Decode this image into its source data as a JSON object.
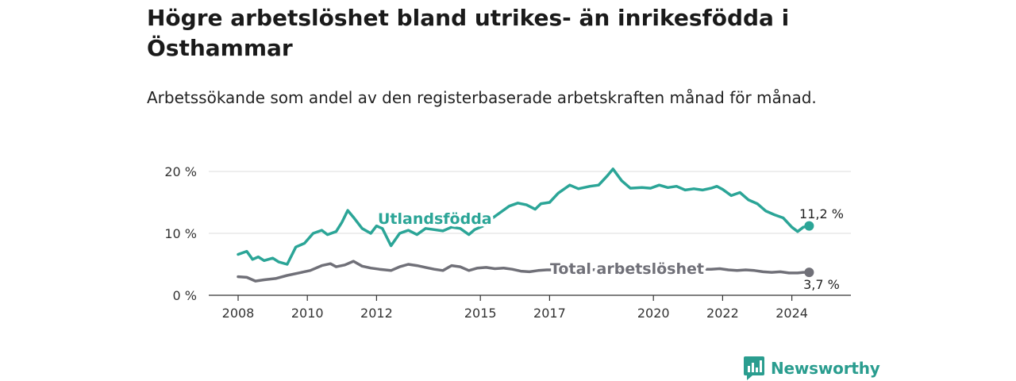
{
  "title": "Högre arbetslöshet bland utrikes- än inrikesfödda i Östhammar",
  "subtitle": "Arbetssökande som andel av den registerbaserade arbetskraften månad för månad.",
  "brand": {
    "name": "Newsworthy",
    "icon": "newsworthy-logo-icon"
  },
  "colors": {
    "foreign_born": "#2ba597",
    "total": "#707078",
    "grid": "#dddddd",
    "brand": "#2a9d8f"
  },
  "chart_data": {
    "type": "line",
    "title": "Högre arbetslöshet bland utrikes- än inrikesfödda i Östhammar",
    "subtitle": "Arbetssökande som andel av den registerbaserade arbetskraften månad för månad.",
    "xlabel": "",
    "ylabel": "",
    "x_ticks": [
      "2008",
      "2010",
      "2012",
      "2015",
      "2017",
      "2020",
      "2022",
      "2024"
    ],
    "y_ticks": [
      "0 %",
      "10 %",
      "20 %"
    ],
    "ylim": [
      0,
      20
    ],
    "grid": "horizontal",
    "legend": "inline labels",
    "series": [
      {
        "name": "Utlandsfödda",
        "last_label": "11,2 %",
        "color": "#2ba597",
        "points": [
          [
            "2008-01",
            6.6
          ],
          [
            "2008-04",
            7.1
          ],
          [
            "2008-06",
            5.8
          ],
          [
            "2008-08",
            6.2
          ],
          [
            "2008-10",
            5.6
          ],
          [
            "2009-01",
            6.0
          ],
          [
            "2009-03",
            5.4
          ],
          [
            "2009-06",
            5.0
          ],
          [
            "2009-09",
            7.8
          ],
          [
            "2009-12",
            8.4
          ],
          [
            "2010-03",
            10.0
          ],
          [
            "2010-06",
            10.5
          ],
          [
            "2010-08",
            9.8
          ],
          [
            "2010-11",
            10.3
          ],
          [
            "2011-01",
            11.8
          ],
          [
            "2011-03",
            13.7
          ],
          [
            "2011-05",
            12.6
          ],
          [
            "2011-08",
            10.8
          ],
          [
            "2011-11",
            10.0
          ],
          [
            "2012-01",
            11.2
          ],
          [
            "2012-03",
            10.8
          ],
          [
            "2012-06",
            8.0
          ],
          [
            "2012-09",
            10.0
          ],
          [
            "2012-12",
            10.5
          ],
          [
            "2013-03",
            9.8
          ],
          [
            "2013-06",
            10.8
          ],
          [
            "2013-09",
            10.6
          ],
          [
            "2013-12",
            10.4
          ],
          [
            "2014-03",
            11.0
          ],
          [
            "2014-06",
            10.8
          ],
          [
            "2014-09",
            9.8
          ],
          [
            "2014-11",
            10.6
          ],
          [
            "2015-02",
            11.2
          ],
          [
            "2015-05",
            12.4
          ],
          [
            "2015-08",
            13.4
          ],
          [
            "2015-11",
            14.4
          ],
          [
            "2016-02",
            14.9
          ],
          [
            "2016-05",
            14.6
          ],
          [
            "2016-08",
            13.9
          ],
          [
            "2016-10",
            14.8
          ],
          [
            "2017-01",
            15.0
          ],
          [
            "2017-04",
            16.5
          ],
          [
            "2017-08",
            17.8
          ],
          [
            "2017-11",
            17.2
          ],
          [
            "2018-03",
            17.6
          ],
          [
            "2018-06",
            17.8
          ],
          [
            "2018-09",
            19.3
          ],
          [
            "2018-11",
            20.4
          ],
          [
            "2019-02",
            18.5
          ],
          [
            "2019-05",
            17.3
          ],
          [
            "2019-09",
            17.4
          ],
          [
            "2019-12",
            17.3
          ],
          [
            "2020-03",
            17.8
          ],
          [
            "2020-06",
            17.4
          ],
          [
            "2020-09",
            17.6
          ],
          [
            "2020-12",
            17.0
          ],
          [
            "2021-03",
            17.2
          ],
          [
            "2021-06",
            17.0
          ],
          [
            "2021-09",
            17.3
          ],
          [
            "2021-11",
            17.6
          ],
          [
            "2022-01",
            17.1
          ],
          [
            "2022-04",
            16.1
          ],
          [
            "2022-07",
            16.6
          ],
          [
            "2022-10",
            15.4
          ],
          [
            "2023-01",
            14.8
          ],
          [
            "2023-04",
            13.6
          ],
          [
            "2023-07",
            13.0
          ],
          [
            "2023-10",
            12.5
          ],
          [
            "2024-01",
            11.0
          ],
          [
            "2024-03",
            10.3
          ],
          [
            "2024-05",
            11.0
          ],
          [
            "2024-07",
            11.2
          ]
        ]
      },
      {
        "name": "Total arbetslöshet",
        "last_label": "3,7 %",
        "color": "#707078",
        "points": [
          [
            "2008-01",
            3.0
          ],
          [
            "2008-04",
            2.9
          ],
          [
            "2008-07",
            2.3
          ],
          [
            "2008-10",
            2.5
          ],
          [
            "2009-02",
            2.7
          ],
          [
            "2009-06",
            3.2
          ],
          [
            "2009-10",
            3.6
          ],
          [
            "2010-02",
            4.0
          ],
          [
            "2010-06",
            4.8
          ],
          [
            "2010-09",
            5.1
          ],
          [
            "2010-11",
            4.6
          ],
          [
            "2011-02",
            4.9
          ],
          [
            "2011-05",
            5.5
          ],
          [
            "2011-08",
            4.7
          ],
          [
            "2011-11",
            4.4
          ],
          [
            "2012-02",
            4.2
          ],
          [
            "2012-06",
            4.0
          ],
          [
            "2012-09",
            4.6
          ],
          [
            "2012-12",
            5.0
          ],
          [
            "2013-03",
            4.8
          ],
          [
            "2013-06",
            4.5
          ],
          [
            "2013-09",
            4.2
          ],
          [
            "2013-12",
            4.0
          ],
          [
            "2014-03",
            4.8
          ],
          [
            "2014-06",
            4.6
          ],
          [
            "2014-09",
            4.0
          ],
          [
            "2014-12",
            4.4
          ],
          [
            "2015-03",
            4.5
          ],
          [
            "2015-06",
            4.3
          ],
          [
            "2015-09",
            4.4
          ],
          [
            "2015-12",
            4.2
          ],
          [
            "2016-03",
            3.9
          ],
          [
            "2016-06",
            3.8
          ],
          [
            "2016-09",
            4.0
          ],
          [
            "2016-12",
            4.1
          ],
          [
            "2017-02",
            4.1
          ],
          [
            "2021-09",
            4.2
          ],
          [
            "2021-12",
            4.3
          ],
          [
            "2022-03",
            4.1
          ],
          [
            "2022-06",
            4.0
          ],
          [
            "2022-09",
            4.1
          ],
          [
            "2022-12",
            4.0
          ],
          [
            "2023-03",
            3.8
          ],
          [
            "2023-06",
            3.7
          ],
          [
            "2023-09",
            3.8
          ],
          [
            "2023-12",
            3.6
          ],
          [
            "2024-03",
            3.6
          ],
          [
            "2024-05",
            3.7
          ],
          [
            "2024-07",
            3.7
          ]
        ]
      }
    ]
  }
}
